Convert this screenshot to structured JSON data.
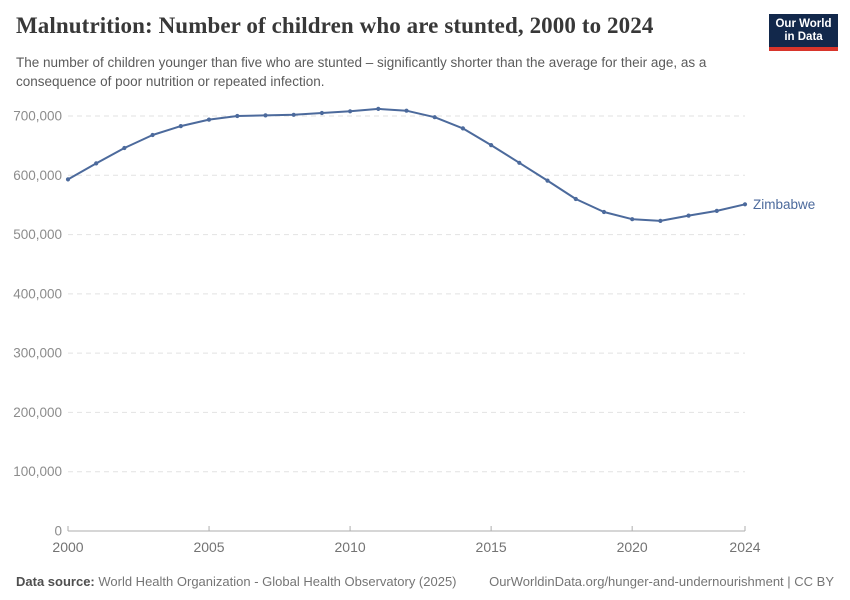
{
  "header": {
    "title": "Malnutrition: Number of children who are stunted, 2000 to 2024",
    "subtitle": "The number of children younger than five who are stunted – significantly shorter than the average for their age, as a consequence of poor nutrition or repeated infection.",
    "logo_line1": "Our World",
    "logo_line2": "in Data"
  },
  "chart_data": {
    "type": "line",
    "title": "Malnutrition: Number of children who are stunted, 2000 to 2024",
    "x": [
      2000,
      2001,
      2002,
      2003,
      2004,
      2005,
      2006,
      2007,
      2008,
      2009,
      2010,
      2011,
      2012,
      2013,
      2014,
      2015,
      2016,
      2017,
      2018,
      2019,
      2020,
      2021,
      2022,
      2023,
      2024
    ],
    "series": [
      {
        "name": "Zimbabwe",
        "values": [
          593000,
          620000,
          646000,
          668000,
          683000,
          694000,
          700000,
          701000,
          702000,
          705000,
          708000,
          712000,
          709000,
          698000,
          679000,
          651000,
          621000,
          591000,
          560000,
          538000,
          526000,
          523000,
          532000,
          540000,
          551000
        ]
      }
    ],
    "xlabel": "",
    "ylabel": "",
    "xlim": [
      2000,
      2024
    ],
    "ylim": [
      0,
      750000
    ],
    "xticks": [
      2000,
      2005,
      2010,
      2015,
      2020,
      2024
    ],
    "yticks": [
      0,
      100000,
      200000,
      300000,
      400000,
      500000,
      600000,
      700000
    ],
    "grid": "horizontal-dashed",
    "legend_position": "end-of-line-label",
    "end_label": "Zimbabwe"
  },
  "footer": {
    "source_label": "Data source:",
    "source_text": " World Health Organization - Global Health Observatory (2025)",
    "link_text": "OurWorldinData.org/hunger-and-undernourishment | CC BY"
  },
  "colors": {
    "line": "#4c6a9c",
    "end_label": "#4c6a9c",
    "gridline": "#e2e2e2",
    "axis_line": "#aeaeae",
    "y_tick_label": "#8c8c8c",
    "x_tick_label": "#737373",
    "logo_bg": "#12284b",
    "logo_accent": "#d8352b"
  }
}
